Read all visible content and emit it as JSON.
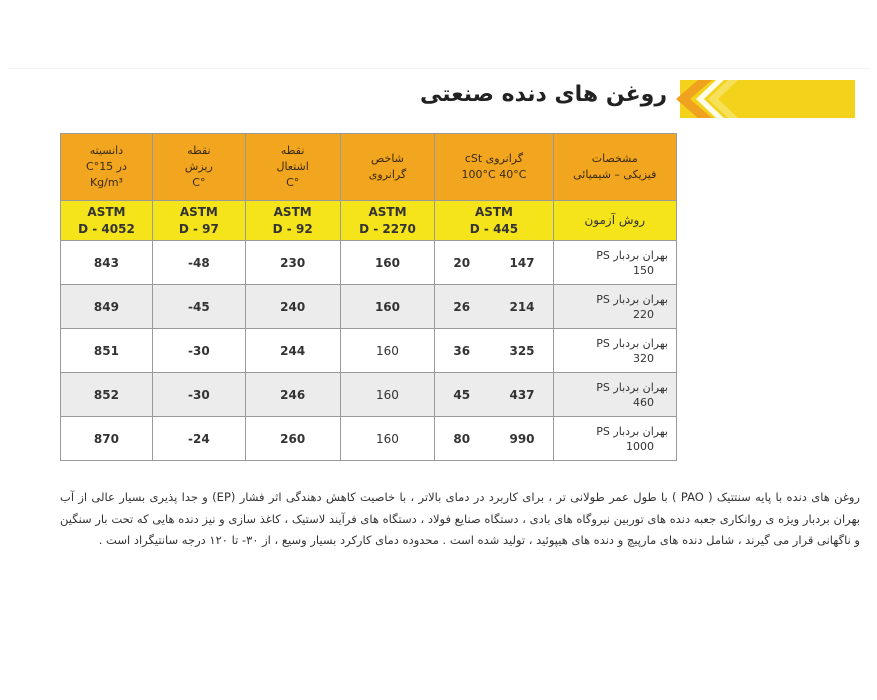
{
  "title": "روغن های دنده صنعتی",
  "colors": {
    "header": "#f2a51f",
    "astm_row": "#f5e41a",
    "banner": "#f3d21b",
    "chevron": "#f0a21e"
  },
  "table": {
    "headers": [
      {
        "lines": [
          "مشخصات",
          "فیزیکی – شیمیائی"
        ]
      },
      {
        "lines": [
          "گرانروی cSt",
          "100°C   40°C"
        ]
      },
      {
        "lines": [
          "شاخص",
          "گرانروی"
        ]
      },
      {
        "lines": [
          "نقطه",
          "اشتعال",
          "°C"
        ]
      },
      {
        "lines": [
          "نقطه",
          "ریزش",
          "°C"
        ]
      },
      {
        "lines": [
          "دانسیته",
          "در 15°C",
          "Kg/m³"
        ]
      }
    ],
    "test_method_label": "روش آزمون",
    "methods": [
      {
        "l1": "ASTM",
        "l2": "D - 445"
      },
      {
        "l1": "ASTM",
        "l2": "D - 2270"
      },
      {
        "l1": "ASTM",
        "l2": "D - 92"
      },
      {
        "l1": "ASTM",
        "l2": "D - 97"
      },
      {
        "l1": "ASTM",
        "l2": "D - 4052"
      }
    ],
    "rows": [
      {
        "name": "بهران بردبار PS",
        "grade": "150",
        "v40": "147",
        "v100": "20",
        "vi": "160",
        "flash": "230",
        "pour": "-48",
        "density": "843"
      },
      {
        "name": "بهران بردبار PS",
        "grade": "220",
        "v40": "214",
        "v100": "26",
        "vi": "160",
        "flash": "240",
        "pour": "-45",
        "density": "849"
      },
      {
        "name": "بهران بردبار PS",
        "grade": "320",
        "v40": "325",
        "v100": "36",
        "vi": "160",
        "flash": "244",
        "pour": "-30",
        "density": "851"
      },
      {
        "name": "بهران بردبار PS",
        "grade": "460",
        "v40": "437",
        "v100": "45",
        "vi": "160",
        "flash": "246",
        "pour": "-30",
        "density": "852"
      },
      {
        "name": "بهران بردبار PS",
        "grade": "1000",
        "v40": "990",
        "v100": "80",
        "vi": "160",
        "flash": "260",
        "pour": "-24",
        "density": "870"
      }
    ]
  },
  "paragraph": "روغن های دنده با پایه سنتتیک ( PAO ) با طول عمر طولانی تر ، برای کاربرد در دمای بالاتر ، با خاصیت کاهش دهندگی اثر فشار (EP) و جدا پذیری بسیار عالی از آب بهران بردبار ویژه ی روانکاری جعبه دنده های توربین نیروگاه های بادی ، دستگاه صنایع فولاد ، دستگاه های فرآیند لاستیک ، کاغذ سازی و نیز دنده هایی که تحت بار سنگین و ناگهانی قرار می گیرند ، شامل دنده های مارپیچ و دنده های هیپوئید ، تولید شده است . محدوده دمای کارکرد بسیار وسیع ، از ۳۰- تا ۱۲۰ درجه سانتیگراد است ."
}
